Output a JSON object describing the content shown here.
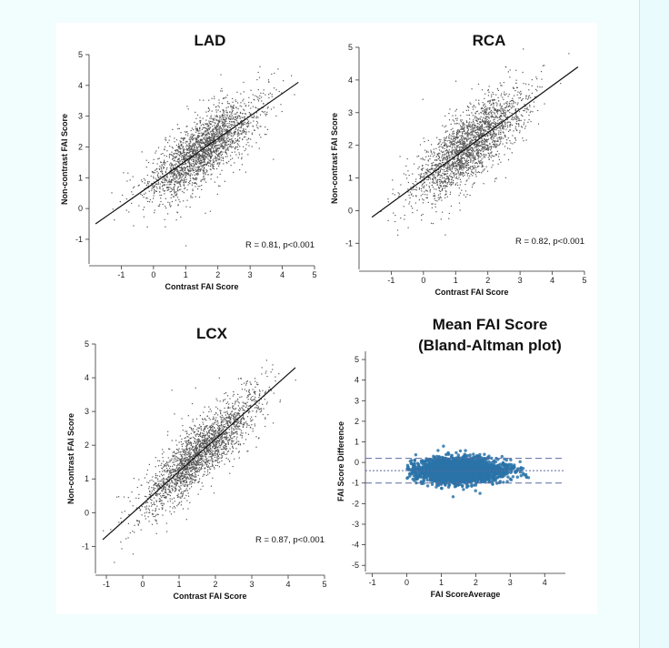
{
  "figure": {
    "panels": [
      {
        "title": "LAD",
        "xlabel": "Contrast FAI Score",
        "ylabel": "Non-contrast FAI Score",
        "annotation": "R = 0.81, p<0.001"
      },
      {
        "title": "RCA",
        "xlabel": "Contrast FAI Score",
        "ylabel": "Non-contrast FAI Score",
        "annotation": "R = 0.82, p<0.001"
      },
      {
        "title": "LCX",
        "xlabel": "Contrast FAI Score",
        "ylabel": "Non-contrast FAI Score",
        "annotation": "R = 0.87, p<0.001"
      },
      {
        "title": "Mean FAI Score",
        "subtitle": "(Bland-Altman plot)",
        "xlabel": "FAI ScoreAverage",
        "ylabel": "FAI Score Difference",
        "annotation": ""
      }
    ]
  },
  "chart_data": [
    {
      "type": "scatter",
      "title": "LAD",
      "xlabel": "Contrast FAI Score",
      "ylabel": "Non-contrast FAI Score",
      "xlim": [
        -2,
        5
      ],
      "ylim": [
        -1.8,
        5
      ],
      "xticks": [
        -1,
        0,
        1,
        2,
        3,
        4,
        5
      ],
      "yticks": [
        -1,
        0,
        1,
        2,
        3,
        4,
        5
      ],
      "point_color": "#555555",
      "line_color": "#111111",
      "fit_line": {
        "x": [
          -1.8,
          4.5
        ],
        "y": [
          -0.5,
          4.1
        ]
      },
      "cloud": {
        "x_center": 1.5,
        "x_spread": 0.85,
        "slope": 0.73,
        "intercept": 0.8,
        "residual_sd": 0.5,
        "x_min": -1.5,
        "x_max": 4.6
      },
      "annotation": "R = 0.81, p<0.001"
    },
    {
      "type": "scatter",
      "title": "RCA",
      "xlabel": "Contrast FAI Score",
      "ylabel": "Non-contrast FAI Score",
      "xlim": [
        -2,
        5
      ],
      "ylim": [
        -1.8,
        5
      ],
      "xticks": [
        -1,
        0,
        1,
        2,
        3,
        4,
        5
      ],
      "yticks": [
        -1,
        0,
        1,
        2,
        3,
        4,
        5
      ],
      "point_color": "#555555",
      "line_color": "#111111",
      "fit_line": {
        "x": [
          -1.6,
          4.8
        ],
        "y": [
          -0.2,
          4.4
        ]
      },
      "cloud": {
        "x_center": 1.4,
        "x_spread": 0.85,
        "slope": 0.72,
        "intercept": 0.95,
        "residual_sd": 0.5,
        "x_min": -1.4,
        "x_max": 4.7
      },
      "annotation": "R = 0.82, p<0.001"
    },
    {
      "type": "scatter",
      "title": "LCX",
      "xlabel": "Contrast FAI Score",
      "ylabel": "Non-contrast FAI Score",
      "xlim": [
        -1.3,
        5
      ],
      "ylim": [
        -1.8,
        5
      ],
      "xticks": [
        -1,
        0,
        1,
        2,
        3,
        4,
        5
      ],
      "yticks": [
        -1,
        0,
        1,
        2,
        3,
        4,
        5
      ],
      "point_color": "#555555",
      "line_color": "#111111",
      "fit_line": {
        "x": [
          -1.1,
          4.2
        ],
        "y": [
          -0.8,
          4.3
        ]
      },
      "cloud": {
        "x_center": 1.6,
        "x_spread": 0.8,
        "slope": 0.96,
        "intercept": 0.25,
        "residual_sd": 0.42,
        "x_min": -1.2,
        "x_max": 4.3
      },
      "annotation": "R = 0.87, p<0.001"
    },
    {
      "type": "scatter",
      "title": "Mean FAI Score",
      "subtitle": "(Bland-Altman plot)",
      "xlabel": "FAI ScoreAverage",
      "ylabel": "FAI Score Difference",
      "xlim": [
        -1.2,
        4.6
      ],
      "ylim": [
        -5.3,
        5.4
      ],
      "xticks": [
        -1,
        0,
        1,
        2,
        3,
        4
      ],
      "yticks": [
        -5,
        -4,
        -3,
        -2,
        -1,
        0,
        1,
        2,
        3,
        4,
        5
      ],
      "point_color": "#2a73a8",
      "line_color": "#5a6aa0",
      "mean_difference": -0.4,
      "limits_of_agreement": [
        -1.0,
        0.2
      ],
      "cloud": {
        "x_center": 1.5,
        "x_spread": 0.65,
        "y_center": -0.4,
        "residual_sd": 0.35,
        "x_min": 0.0,
        "x_max": 3.6
      }
    }
  ]
}
